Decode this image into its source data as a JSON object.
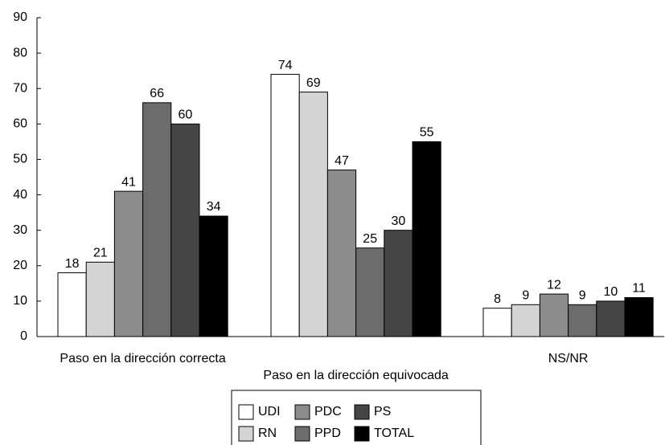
{
  "chart_data": {
    "type": "bar",
    "categories": [
      "Paso en la dirección correcta",
      "Paso en la dirección equivocada",
      "NS/NR"
    ],
    "series": [
      {
        "name": "UDI",
        "color": "#ffffff",
        "values": [
          18,
          74,
          8
        ]
      },
      {
        "name": "RN",
        "color": "#d4d4d4",
        "values": [
          21,
          69,
          9
        ]
      },
      {
        "name": "PDC",
        "color": "#8c8c8c",
        "values": [
          41,
          47,
          12
        ]
      },
      {
        "name": "PPD",
        "color": "#6c6c6c",
        "values": [
          66,
          25,
          9
        ]
      },
      {
        "name": "PS",
        "color": "#454545",
        "values": [
          60,
          30,
          10
        ]
      },
      {
        "name": "TOTAL",
        "color": "#000000",
        "values": [
          34,
          55,
          11
        ]
      }
    ],
    "ylim": [
      0,
      90
    ],
    "yticks": [
      0,
      10,
      20,
      30,
      40,
      50,
      60,
      70,
      80,
      90
    ],
    "legend": "bottom"
  }
}
